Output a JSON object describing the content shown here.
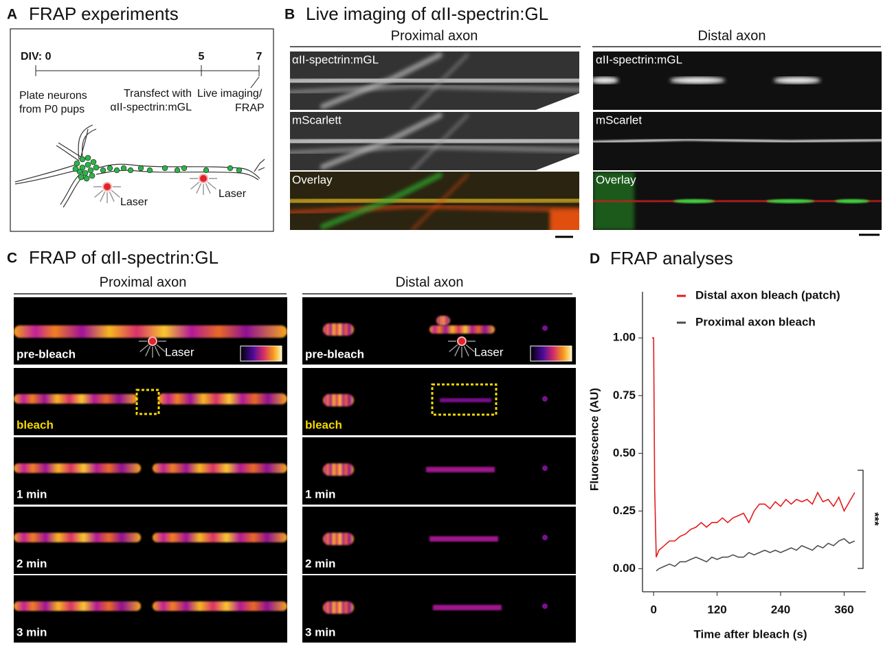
{
  "panel_a": {
    "letter": "A",
    "title": "FRAP experiments",
    "timeline_labels": [
      "DIV: 0",
      "5",
      "7"
    ],
    "notes": [
      "Plate neurons",
      "from P0 pups",
      "Transfect with",
      "αII-spectrin:mGL",
      "Live imaging/",
      "FRAP"
    ],
    "laser_labels": [
      "Laser",
      "Laser"
    ]
  },
  "panel_b": {
    "letter": "B",
    "title": "Live imaging of αII-spectrin:GL",
    "columns": [
      {
        "title": "Proximal axon",
        "channels": [
          "αII-spectrin:mGL",
          "mScarlett",
          "Overlay"
        ]
      },
      {
        "title": "Distal axon",
        "channels": [
          "αII-spectrin:mGL",
          "mScarlet",
          "Overlay"
        ]
      }
    ]
  },
  "panel_c": {
    "letter": "C",
    "title": "FRAP of αII-spectrin:GL",
    "columns": [
      "Proximal axon",
      "Distal axon"
    ],
    "rows": [
      "pre-bleach",
      "bleach",
      "1 min",
      "2 min",
      "3 min"
    ],
    "laser_label": "Laser"
  },
  "chart_data": {
    "type": "line",
    "letter": "D",
    "title": "FRAP analyses",
    "x_label": "Time after bleach (s)",
    "y_label": "Fluorescence (AU)",
    "annotation": "***",
    "x": [
      -3,
      0,
      2,
      5,
      10,
      20,
      30,
      40,
      50,
      60,
      70,
      80,
      90,
      100,
      110,
      120,
      130,
      140,
      150,
      160,
      170,
      180,
      190,
      200,
      210,
      220,
      230,
      240,
      250,
      260,
      270,
      280,
      290,
      300,
      310,
      320,
      330,
      340,
      350,
      360,
      370,
      380
    ],
    "series": [
      {
        "name": "Distal axon bleach (patch)",
        "color": "#e31a1c",
        "values": [
          1.0,
          1.0,
          0.35,
          0.05,
          0.08,
          0.1,
          0.12,
          0.12,
          0.14,
          0.15,
          0.17,
          0.18,
          0.2,
          0.18,
          0.2,
          0.2,
          0.22,
          0.2,
          0.22,
          0.23,
          0.24,
          0.2,
          0.25,
          0.28,
          0.28,
          0.26,
          0.29,
          0.27,
          0.3,
          0.28,
          0.3,
          0.29,
          0.3,
          0.28,
          0.33,
          0.29,
          0.3,
          0.27,
          0.31,
          0.25,
          0.29,
          0.33
        ]
      },
      {
        "name": "Proximal axon bleach",
        "color": "#4d4d4d",
        "values": [
          null,
          null,
          null,
          -0.01,
          0.0,
          0.01,
          0.02,
          0.01,
          0.03,
          0.03,
          0.04,
          0.05,
          0.04,
          0.03,
          0.05,
          0.04,
          0.05,
          0.05,
          0.06,
          0.05,
          0.05,
          0.07,
          0.06,
          0.07,
          0.08,
          0.07,
          0.08,
          0.07,
          0.08,
          0.09,
          0.08,
          0.1,
          0.09,
          0.08,
          0.1,
          0.09,
          0.11,
          0.1,
          0.12,
          0.13,
          0.11,
          0.12
        ]
      }
    ],
    "xlim": [
      -21,
      401
    ],
    "ylim": [
      -0.1,
      1.2
    ],
    "xticks": [
      0,
      120,
      240,
      360
    ],
    "yticks": [
      {
        "value": 0,
        "label": "0.00"
      },
      {
        "value": 0.25,
        "label": "0.25"
      },
      {
        "value": 0.5,
        "label": "0.50"
      },
      {
        "value": 0.75,
        "label": "0.75"
      },
      {
        "value": 1,
        "label": "1.00"
      }
    ]
  }
}
